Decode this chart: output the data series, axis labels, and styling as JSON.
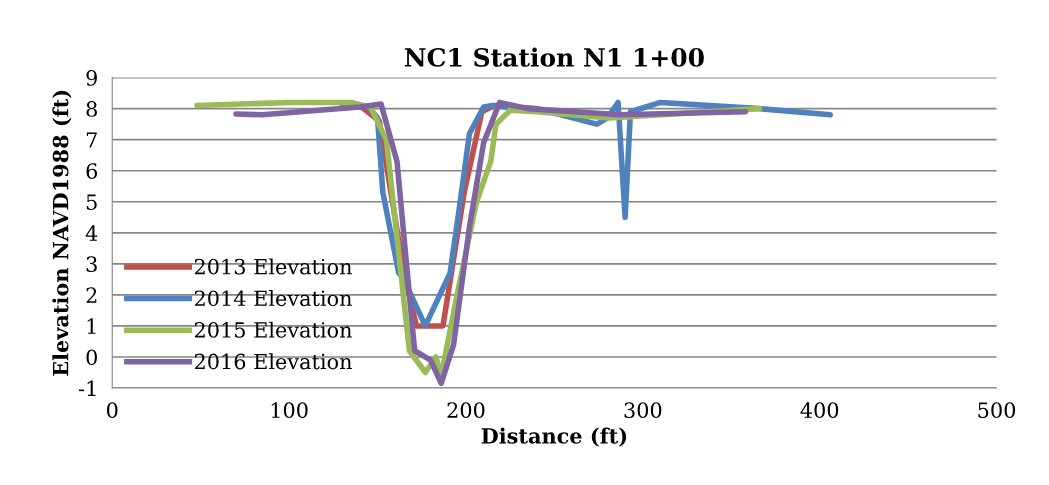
{
  "chart_data": {
    "type": "line",
    "title": "NC1 Station N1 1+00",
    "xlabel": "Distance (ft)",
    "ylabel": "Elevation NAVD1988 (ft)",
    "xlim": [
      0,
      500
    ],
    "xticks": [
      0,
      100,
      200,
      300,
      400,
      500
    ],
    "ylim": [
      -1,
      9
    ],
    "yticks": [
      -1,
      0,
      1,
      2,
      3,
      4,
      5,
      6,
      7,
      8,
      9
    ],
    "grid": "y",
    "legend": "left",
    "marker": "none",
    "line_style": "solid",
    "series": [
      {
        "name": "2013 Elevation",
        "color": "#c0504d",
        "x": [
          140,
          151,
          165,
          172,
          187,
          199,
          209,
          216,
          230
        ],
        "values": [
          8.1,
          7.6,
          2.7,
          1.0,
          1.0,
          5.3,
          7.9,
          8.1,
          8.0
        ]
      },
      {
        "name": "2014 Elevation",
        "color": "#4f81bd",
        "x": [
          130,
          145,
          150,
          153,
          162,
          164,
          177,
          191,
          196,
          202,
          210,
          215,
          240,
          274,
          280,
          286,
          290,
          293,
          310,
          366,
          406
        ],
        "values": [
          8.15,
          8.05,
          7.7,
          5.3,
          2.7,
          2.6,
          1.0,
          2.7,
          4.7,
          7.2,
          8.05,
          8.1,
          8.0,
          7.5,
          7.7,
          8.2,
          4.5,
          7.9,
          8.2,
          8.0,
          7.8
        ]
      },
      {
        "name": "2015 Elevation",
        "color": "#9bbb59",
        "x": [
          48,
          100,
          135,
          146,
          155,
          168,
          177,
          183,
          186,
          195,
          206,
          214,
          217,
          225,
          240,
          281,
          366
        ],
        "values": [
          8.1,
          8.2,
          8.2,
          8.05,
          7.0,
          0.2,
          -0.5,
          0.0,
          -0.6,
          2.0,
          5.0,
          6.3,
          7.5,
          7.95,
          7.9,
          7.7,
          8.0
        ]
      },
      {
        "name": "2016 Elevation",
        "color": "#8064a2",
        "x": [
          70,
          85,
          140,
          152,
          161,
          168,
          171,
          180,
          186,
          193,
          202,
          210,
          219,
          235,
          287,
          358
        ],
        "values": [
          7.83,
          7.8,
          8.05,
          8.15,
          6.3,
          2.0,
          0.2,
          -0.1,
          -0.85,
          0.4,
          4.2,
          6.9,
          8.2,
          8.0,
          7.8,
          7.9
        ]
      }
    ]
  }
}
